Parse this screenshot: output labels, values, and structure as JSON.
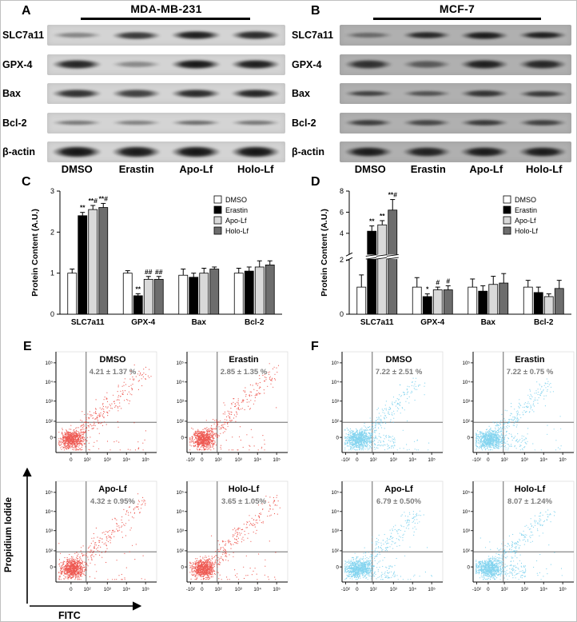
{
  "figure": {
    "panels": {
      "A": {
        "label": "A",
        "title": "MDA-MB-231",
        "col_labels": [
          "DMSO",
          "Erastin",
          "Apo-Lf",
          "Holo-Lf"
        ],
        "strip_bg": "#d4d4d4",
        "rows": [
          {
            "label": "SLC7a11",
            "bands": [
              0.4,
              0.78,
              0.92,
              0.85
            ],
            "band_h": 12
          },
          {
            "label": "GPX-4",
            "bands": [
              0.88,
              0.38,
              0.95,
              0.92
            ],
            "band_h": 13
          },
          {
            "label": "Bax",
            "bands": [
              0.82,
              0.75,
              0.85,
              0.88
            ],
            "band_h": 13
          },
          {
            "label": "Bcl-2",
            "bands": [
              0.46,
              0.42,
              0.52,
              0.47
            ],
            "band_h": 10
          },
          {
            "label": "β-actin",
            "bands": [
              0.96,
              0.94,
              0.96,
              0.96
            ],
            "band_h": 15
          }
        ]
      },
      "B": {
        "label": "B",
        "title": "MCF-7",
        "col_labels": [
          "DMSO",
          "Erastin",
          "Apo-Lf",
          "Holo-Lf"
        ],
        "strip_bg": "#b0b0b0",
        "rows": [
          {
            "label": "SLC7a11",
            "bands": [
              0.45,
              0.85,
              0.92,
              0.9
            ],
            "band_h": 11
          },
          {
            "label": "GPX-4",
            "bands": [
              0.8,
              0.55,
              0.9,
              0.85
            ],
            "band_h": 13
          },
          {
            "label": "Bax",
            "bands": [
              0.7,
              0.6,
              0.78,
              0.75
            ],
            "band_h": 10
          },
          {
            "label": "Bcl-2",
            "bands": [
              0.72,
              0.66,
              0.74,
              0.7
            ],
            "band_h": 11
          },
          {
            "label": "β-actin",
            "bands": [
              0.92,
              0.88,
              0.92,
              0.92
            ],
            "band_h": 14
          }
        ]
      },
      "C": {
        "label": "C"
      },
      "D": {
        "label": "D"
      },
      "E": {
        "label": "E"
      },
      "F": {
        "label": "F"
      }
    }
  },
  "chart_data": [
    {
      "type": "bar",
      "panel": "C",
      "cell_line": "MDA-MB-231",
      "ylabel": "Protein Content (A.U.)",
      "ylim": [
        0,
        3
      ],
      "yticks": [
        0,
        1,
        2,
        3
      ],
      "categories": [
        "SLC7a11",
        "GPX-4",
        "Bax",
        "Bcl-2"
      ],
      "series": [
        {
          "name": "DMSO",
          "color": "#ffffff",
          "values": [
            1.0,
            1.0,
            0.95,
            1.0
          ],
          "errors": [
            0.1,
            0.06,
            0.15,
            0.12
          ]
        },
        {
          "name": "Erastin",
          "color": "#000000",
          "values": [
            2.4,
            0.45,
            0.9,
            1.05
          ],
          "errors": [
            0.08,
            0.05,
            0.1,
            0.1
          ]
        },
        {
          "name": "Apo-Lf",
          "color": "#d9d9d9",
          "values": [
            2.55,
            0.85,
            1.0,
            1.15
          ],
          "errors": [
            0.1,
            0.07,
            0.12,
            0.15
          ]
        },
        {
          "name": "Holo-Lf",
          "color": "#6d6d6d",
          "values": [
            2.6,
            0.85,
            1.1,
            1.2
          ],
          "errors": [
            0.1,
            0.07,
            0.05,
            0.1
          ]
        }
      ],
      "annotations": [
        [
          "",
          "**",
          "**#",
          "**#"
        ],
        [
          "",
          "**",
          "##",
          "##"
        ],
        [
          "",
          "",
          "",
          ""
        ],
        [
          "",
          "",
          "",
          ""
        ]
      ]
    },
    {
      "type": "bar",
      "panel": "D",
      "cell_line": "MCF-7",
      "ylabel": "Protein Content (A.U.)",
      "ylim": [
        0,
        8
      ],
      "yticks": [
        0,
        2,
        4,
        6,
        8
      ],
      "axis_break": {
        "low_max": 2,
        "high_max": 8
      },
      "categories": [
        "SLC7a11",
        "GPX-4",
        "Bax",
        "Bcl-2"
      ],
      "series": [
        {
          "name": "DMSO",
          "color": "#ffffff",
          "values": [
            1.0,
            1.0,
            1.0,
            1.0
          ],
          "errors": [
            0.45,
            0.35,
            0.3,
            0.25
          ]
        },
        {
          "name": "Erastin",
          "color": "#000000",
          "values": [
            4.2,
            0.65,
            0.85,
            0.8
          ],
          "errors": [
            0.5,
            0.1,
            0.2,
            0.2
          ]
        },
        {
          "name": "Apo-Lf",
          "color": "#d9d9d9",
          "values": [
            4.8,
            0.9,
            1.1,
            0.65
          ],
          "errors": [
            0.4,
            0.1,
            0.3,
            0.1
          ]
        },
        {
          "name": "Holo-Lf",
          "color": "#6d6d6d",
          "values": [
            6.2,
            0.9,
            1.15,
            0.95
          ],
          "errors": [
            1.0,
            0.15,
            0.35,
            0.3
          ]
        }
      ],
      "annotations": [
        [
          "",
          "**",
          "**",
          "**#"
        ],
        [
          "",
          "*",
          "#",
          "#"
        ],
        [
          "",
          "",
          "",
          ""
        ],
        [
          "",
          "",
          "",
          ""
        ]
      ]
    },
    {
      "type": "scatter",
      "panel": "E",
      "cell_line": "MDA-MB-231",
      "xlabel": "FITC",
      "ylabel": "Propidium Iodide",
      "dot_color": "#e8231a",
      "x_ticks": [
        "-10²",
        "0",
        "10²",
        "10³",
        "10⁴",
        "10⁵"
      ],
      "y_ticks": [
        "0",
        "10²",
        "10³",
        "10⁴",
        "10⁵"
      ],
      "subplots": [
        {
          "title": "DMSO",
          "stat": "4.21 ± 1.37 %",
          "show_neg_x": false
        },
        {
          "title": "Erastin",
          "stat": "2.85 ± 1.35 %",
          "show_neg_x": true
        },
        {
          "title": "Apo-Lf",
          "stat": "4.32 ± 0.95%",
          "show_neg_x": false
        },
        {
          "title": "Holo-Lf",
          "stat": "3.65 ± 1.05%",
          "show_neg_x": true
        }
      ]
    },
    {
      "type": "scatter",
      "panel": "F",
      "cell_line": "MCF-7",
      "xlabel": "FITC",
      "ylabel": "Propidium Iodide",
      "dot_color": "#5bc6ea",
      "x_ticks": [
        "-10²",
        "0",
        "10²",
        "10³",
        "10⁴",
        "10⁵"
      ],
      "y_ticks": [
        "0",
        "10²",
        "10³",
        "10⁴",
        "10⁵"
      ],
      "subplots": [
        {
          "title": "DMSO",
          "stat": "7.22 ± 2.51 %",
          "show_neg_x": true
        },
        {
          "title": "Erastin",
          "stat": "7.22 ± 0.75 %",
          "show_neg_x": true
        },
        {
          "title": "Apo-Lf",
          "stat": "6.79 ± 0.50%",
          "show_neg_x": true
        },
        {
          "title": "Holo-Lf",
          "stat": "8.07 ± 1.24%",
          "show_neg_x": true
        }
      ]
    }
  ]
}
